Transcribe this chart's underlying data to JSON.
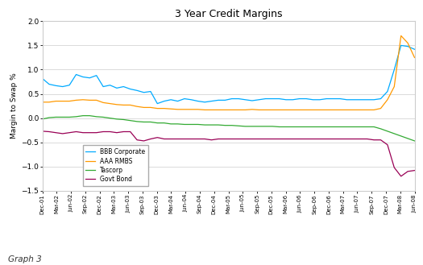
{
  "title": "3 Year Credit Margins",
  "ylabel": "Margin to Swap %",
  "caption": "Graph 3",
  "ylim": [
    -1.5,
    2.0
  ],
  "yticks": [
    -1.5,
    -1.0,
    -0.5,
    0.0,
    0.5,
    1.0,
    1.5,
    2.0
  ],
  "x_labels": [
    "Dec-01",
    "Mar-02",
    "Jun-02",
    "Sep-02",
    "Dec-02",
    "Mar-03",
    "Jun-03",
    "Sep-03",
    "Dec-03",
    "Mar-04",
    "Jun-04",
    "Sep-04",
    "Dec-04",
    "Mar-05",
    "Jun-05",
    "Sep-05",
    "Dec-05",
    "Mar-06",
    "Jun-06",
    "Sep-06",
    "Dec-06",
    "Mar-07",
    "Jun-07",
    "Sep-07",
    "Dec-07",
    "Mar-08",
    "Jun-08"
  ],
  "colors": {
    "bbb": "#00aaff",
    "aaa": "#ff9900",
    "tascorp": "#33aa33",
    "govt": "#990055"
  },
  "legend_labels": [
    "BBB Corporate",
    "AAA RMBS",
    "Tascorp",
    "Govt Bond"
  ],
  "background": "#ffffff",
  "plot_bg": "#ffffff",
  "border_color": "#cccccc",
  "bbb": [
    0.82,
    0.7,
    0.67,
    0.65,
    0.68,
    0.9,
    0.85,
    0.83,
    0.88,
    0.65,
    0.68,
    0.62,
    0.65,
    0.6,
    0.57,
    0.53,
    0.55,
    0.3,
    0.35,
    0.38,
    0.35,
    0.4,
    0.38,
    0.35,
    0.33,
    0.35,
    0.37,
    0.37,
    0.4,
    0.4,
    0.38,
    0.36,
    0.38,
    0.4,
    0.4,
    0.4,
    0.38,
    0.38,
    0.4,
    0.4,
    0.38,
    0.38,
    0.4,
    0.4,
    0.4,
    0.38,
    0.38,
    0.38,
    0.38,
    0.38,
    0.4,
    0.55,
    1.0,
    1.5,
    1.48,
    1.42
  ],
  "aaa": [
    0.33,
    0.33,
    0.35,
    0.35,
    0.35,
    0.37,
    0.38,
    0.37,
    0.37,
    0.32,
    0.3,
    0.28,
    0.27,
    0.27,
    0.24,
    0.22,
    0.22,
    0.2,
    0.2,
    0.19,
    0.18,
    0.18,
    0.18,
    0.18,
    0.17,
    0.17,
    0.17,
    0.17,
    0.17,
    0.17,
    0.17,
    0.18,
    0.17,
    0.17,
    0.17,
    0.17,
    0.17,
    0.17,
    0.17,
    0.17,
    0.17,
    0.17,
    0.17,
    0.17,
    0.17,
    0.17,
    0.17,
    0.17,
    0.17,
    0.17,
    0.2,
    0.38,
    0.65,
    1.7,
    1.55,
    1.25
  ],
  "tascorp": [
    -0.02,
    0.01,
    0.02,
    0.02,
    0.02,
    0.03,
    0.05,
    0.05,
    0.03,
    0.02,
    0.0,
    -0.02,
    -0.03,
    -0.05,
    -0.07,
    -0.08,
    -0.08,
    -0.1,
    -0.1,
    -0.12,
    -0.12,
    -0.13,
    -0.13,
    -0.13,
    -0.14,
    -0.14,
    -0.14,
    -0.15,
    -0.15,
    -0.16,
    -0.17,
    -0.17,
    -0.17,
    -0.17,
    -0.17,
    -0.18,
    -0.18,
    -0.18,
    -0.18,
    -0.18,
    -0.18,
    -0.18,
    -0.18,
    -0.18,
    -0.18,
    -0.18,
    -0.18,
    -0.18,
    -0.18,
    -0.18,
    -0.22,
    -0.27,
    -0.32,
    -0.37,
    -0.42,
    -0.47
  ],
  "govt": [
    -0.27,
    -0.28,
    -0.3,
    -0.32,
    -0.3,
    -0.28,
    -0.3,
    -0.3,
    -0.3,
    -0.28,
    -0.28,
    -0.3,
    -0.28,
    -0.28,
    -0.45,
    -0.47,
    -0.43,
    -0.4,
    -0.43,
    -0.43,
    -0.43,
    -0.43,
    -0.43,
    -0.43,
    -0.43,
    -0.45,
    -0.43,
    -0.43,
    -0.43,
    -0.43,
    -0.43,
    -0.43,
    -0.43,
    -0.43,
    -0.43,
    -0.43,
    -0.43,
    -0.43,
    -0.43,
    -0.43,
    -0.43,
    -0.43,
    -0.43,
    -0.43,
    -0.43,
    -0.43,
    -0.43,
    -0.43,
    -0.43,
    -0.45,
    -0.45,
    -0.55,
    -1.02,
    -1.2,
    -1.1,
    -1.08
  ]
}
